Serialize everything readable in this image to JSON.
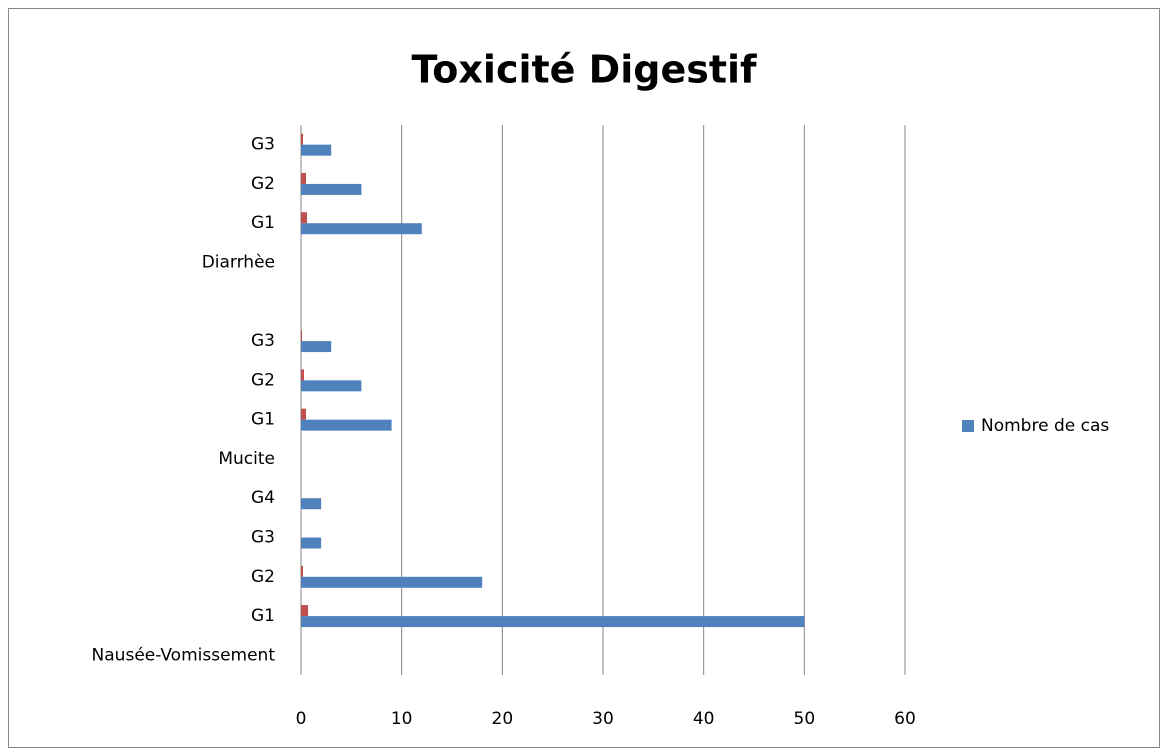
{
  "chart_data": {
    "type": "bar",
    "orientation": "horizontal",
    "title": "Toxicité Digestif",
    "categories": [
      "Nausée-Vomissement",
      "G1",
      "G2",
      "G3",
      "G4",
      "Mucite",
      "G1",
      "G2",
      "G3",
      null,
      "Diarrhèe",
      "G1",
      "G2",
      "G3"
    ],
    "series": [
      {
        "name": "Nombre de cas",
        "color": "#4f81bd",
        "values": [
          null,
          50,
          18,
          2,
          2,
          null,
          9,
          6,
          3,
          null,
          null,
          12,
          6,
          3
        ]
      },
      {
        "color": "#c0504d",
        "values": [
          null,
          0.7,
          0.2,
          null,
          null,
          null,
          0.5,
          0.3,
          0.1,
          null,
          null,
          0.6,
          0.5,
          0.2
        ]
      }
    ],
    "xlim": [
      0,
      60
    ],
    "xticks": [
      0,
      10,
      20,
      30,
      40,
      50,
      60
    ],
    "grid": true,
    "legend": "right"
  }
}
